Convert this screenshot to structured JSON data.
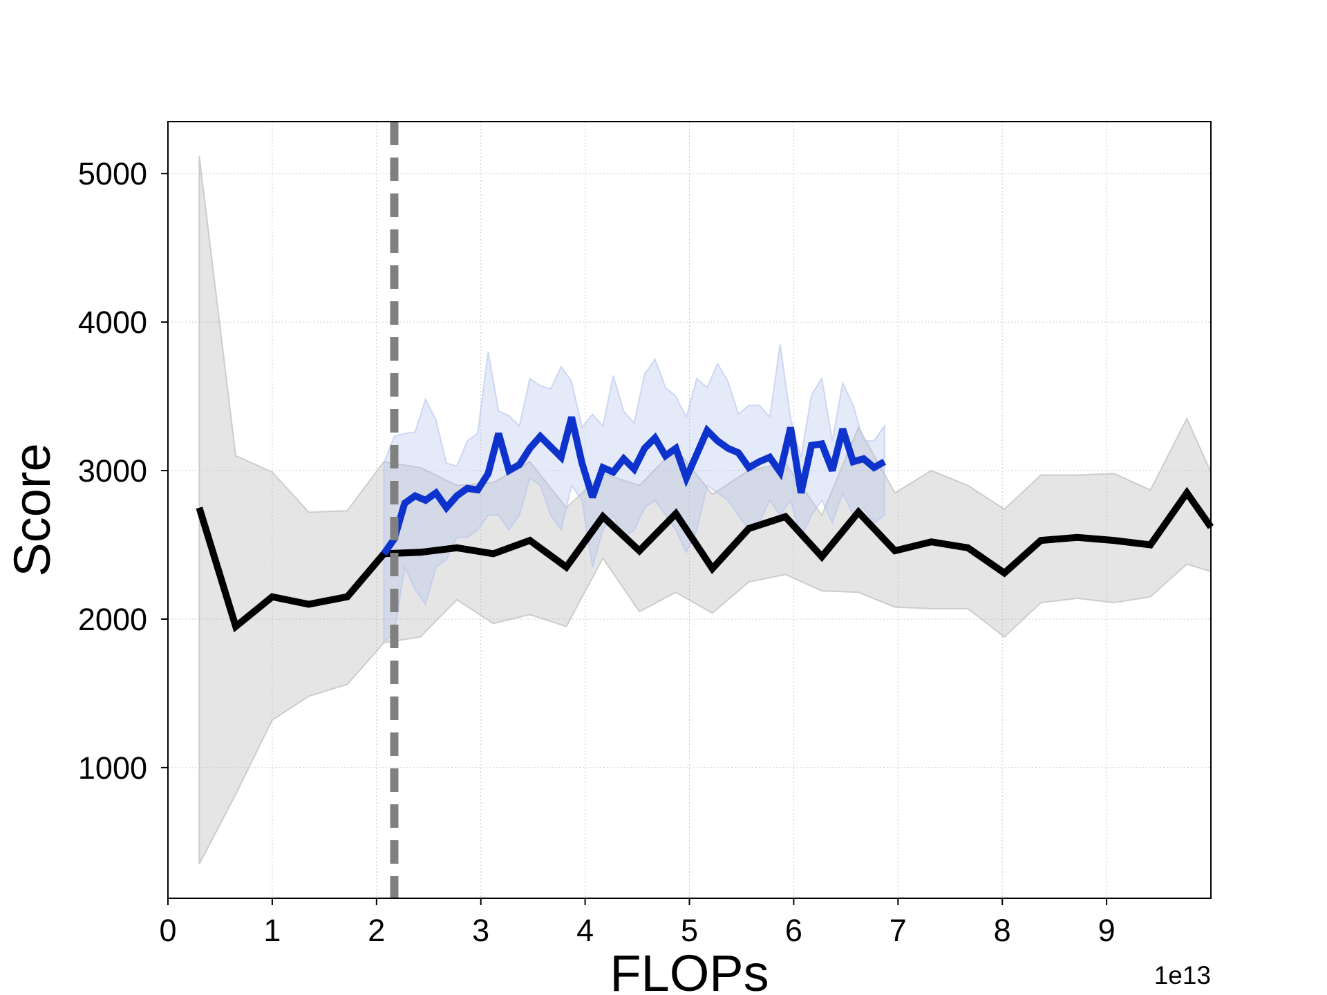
{
  "chart_data": {
    "type": "line",
    "title": "",
    "xlabel": "FLOPs",
    "ylabel": "Score",
    "x_offset_label": "1e13",
    "xlim": [
      0,
      10
    ],
    "ylim": [
      120,
      5350
    ],
    "x_ticks": [
      0,
      1,
      2,
      3,
      4,
      5,
      6,
      7,
      8,
      9
    ],
    "x_tick_labels": [
      "0",
      "1",
      "2",
      "3",
      "4",
      "5",
      "6",
      "7",
      "8",
      "9"
    ],
    "y_ticks": [
      1000,
      2000,
      3000,
      4000,
      5000
    ],
    "y_tick_labels": [
      "1000",
      "2000",
      "3000",
      "4000",
      "5000"
    ],
    "grid": true,
    "legend": "none",
    "vline": {
      "x": 2.17,
      "style": "dashed",
      "color": "#808080"
    },
    "series": [
      {
        "color": "#000000",
        "band_color": "#b4b4b4",
        "x": [
          0.3,
          0.65,
          1.0,
          1.35,
          1.72,
          2.07,
          2.42,
          2.77,
          3.12,
          3.47,
          3.82,
          4.17,
          4.52,
          4.87,
          5.22,
          5.57,
          5.92,
          6.27,
          6.62,
          6.97,
          7.32,
          7.67,
          8.02,
          8.37,
          8.72,
          9.07,
          9.42,
          9.77,
          10.0
        ],
        "y": [
          2750,
          1950,
          2150,
          2100,
          2150,
          2440,
          2450,
          2480,
          2440,
          2530,
          2350,
          2690,
          2460,
          2710,
          2340,
          2610,
          2690,
          2420,
          2720,
          2460,
          2520,
          2480,
          2310,
          2530,
          2550,
          2530,
          2500,
          2850,
          2620
        ],
        "lower": [
          350,
          820,
          1320,
          1480,
          1560,
          1840,
          1880,
          2130,
          1970,
          2030,
          1950,
          2410,
          2050,
          2180,
          2040,
          2250,
          2300,
          2190,
          2180,
          2080,
          2070,
          2070,
          1880,
          2110,
          2140,
          2110,
          2150,
          2370,
          2320
        ],
        "upper": [
          5120,
          3100,
          2990,
          2720,
          2730,
          3060,
          3020,
          2900,
          2920,
          3060,
          2750,
          2980,
          2900,
          3150,
          2840,
          3000,
          3050,
          2700,
          3290,
          2850,
          3000,
          2900,
          2740,
          2970,
          2970,
          2980,
          2870,
          3350,
          2990
        ]
      },
      {
        "color": "#0d33cc",
        "band_color": "#b4c3ef",
        "x": [
          2.07,
          2.17,
          2.27,
          2.37,
          2.47,
          2.57,
          2.67,
          2.77,
          2.87,
          2.97,
          3.07,
          3.17,
          3.27,
          3.37,
          3.47,
          3.57,
          3.67,
          3.77,
          3.87,
          3.97,
          4.07,
          4.17,
          4.27,
          4.37,
          4.47,
          4.57,
          4.67,
          4.77,
          4.87,
          4.97,
          5.07,
          5.17,
          5.27,
          5.37,
          5.47,
          5.57,
          5.67,
          5.77,
          5.87,
          5.97,
          6.07,
          6.17,
          6.27,
          6.37,
          6.47,
          6.57,
          6.67,
          6.77,
          6.87
        ],
        "y": [
          2440,
          2540,
          2780,
          2830,
          2800,
          2850,
          2750,
          2830,
          2880,
          2870,
          2980,
          3250,
          3000,
          3040,
          3150,
          3230,
          3160,
          3090,
          3360,
          3050,
          2820,
          3020,
          2990,
          3080,
          3010,
          3150,
          3220,
          3100,
          3150,
          2950,
          3110,
          3270,
          3200,
          3150,
          3120,
          3020,
          3060,
          3090,
          2990,
          3290,
          2850,
          3170,
          3180,
          3000,
          3280,
          3060,
          3080,
          3020,
          3060
        ],
        "lower": [
          1850,
          1900,
          2350,
          2200,
          2100,
          2350,
          2400,
          2550,
          2550,
          2600,
          2700,
          2700,
          2600,
          2700,
          2950,
          2900,
          2700,
          2600,
          2900,
          2800,
          2350,
          2600,
          2700,
          2550,
          2600,
          2750,
          2800,
          2700,
          2600,
          2450,
          2600,
          2900,
          2850,
          2800,
          2700,
          2600,
          2650,
          2800,
          2700,
          2800,
          2550,
          2700,
          2800,
          2650,
          2850,
          2700,
          2750,
          2650,
          2700
        ],
        "upper": [
          3050,
          3230,
          3250,
          3260,
          3480,
          3340,
          3050,
          3030,
          3200,
          3250,
          3800,
          3400,
          3370,
          3300,
          3620,
          3570,
          3550,
          3700,
          3600,
          3290,
          3380,
          3300,
          3640,
          3400,
          3320,
          3650,
          3750,
          3560,
          3500,
          3360,
          3620,
          3560,
          3720,
          3600,
          3380,
          3440,
          3440,
          3360,
          3850,
          3350,
          3090,
          3510,
          3620,
          3200,
          3590,
          3440,
          3200,
          3200,
          3300
        ]
      }
    ]
  }
}
